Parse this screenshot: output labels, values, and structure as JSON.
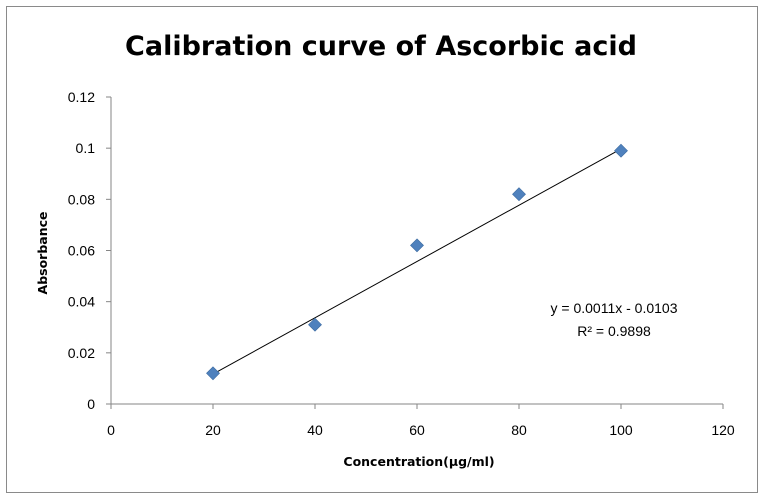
{
  "chart_data": {
    "type": "scatter",
    "title": "Calibration curve of Ascorbic acid",
    "xlabel": "Concentration(µg/ml)",
    "ylabel": "Absorbance",
    "xlim": [
      0,
      120
    ],
    "ylim": [
      0,
      0.12
    ],
    "x_ticks": [
      "0",
      "20",
      "40",
      "60",
      "80",
      "100",
      "120"
    ],
    "y_ticks": [
      "0",
      "0.02",
      "0.04",
      "0.06",
      "0.08",
      "0.1",
      "0.12"
    ],
    "grid": false,
    "legend": "none",
    "series": [
      {
        "marker": "diamond",
        "color": "#4f81bd",
        "x": [
          20,
          40,
          60,
          80,
          100
        ],
        "y": [
          0.012,
          0.031,
          0.062,
          0.082,
          0.099
        ]
      }
    ],
    "trendline": {
      "type": "linear",
      "slope": 0.0011,
      "intercept": -0.0103,
      "x_range": [
        20,
        100
      ],
      "color": "#000000"
    },
    "annotations": {
      "equation": "y = 0.0011x - 0.0103",
      "r_squared": "R² = 0.9898"
    }
  }
}
